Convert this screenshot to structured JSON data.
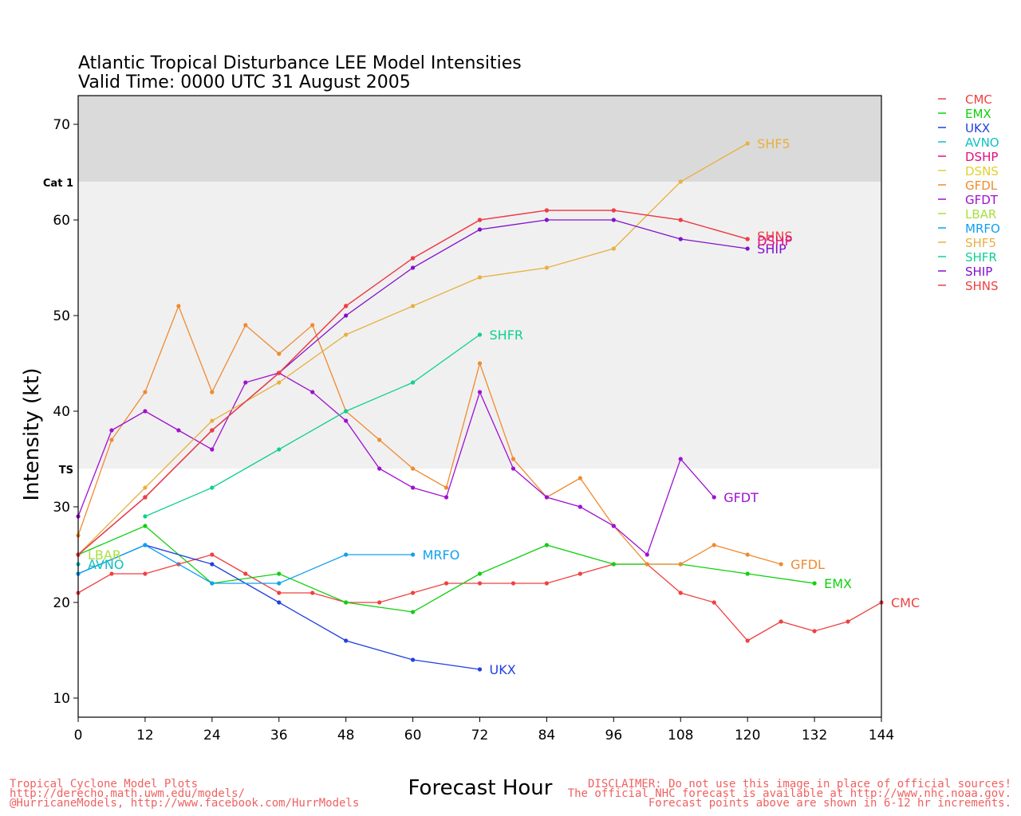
{
  "chart_data": {
    "type": "line",
    "title": "Atlantic Tropical Disturbance LEE Model Intensities",
    "subtitle": "Valid Time: 0000 UTC 31 August 2005",
    "xlabel": "Forecast Hour",
    "ylabel": "Intensity (kt)",
    "xlim": [
      0,
      144
    ],
    "ylim": [
      8,
      73
    ],
    "x_ticks": [
      0,
      12,
      24,
      36,
      48,
      60,
      72,
      84,
      96,
      108,
      120,
      132,
      144
    ],
    "y_ticks": [
      10,
      20,
      30,
      40,
      50,
      60,
      70
    ],
    "bands": [
      {
        "from": 34,
        "to": 64,
        "color": "#f0f0f0",
        "label": "TS",
        "label_at": 34
      },
      {
        "from": 64,
        "to": 73,
        "color": "#dadada",
        "label": "Cat 1",
        "label_at": 64
      }
    ],
    "grid": false,
    "legend_position": "right",
    "series": [
      {
        "name": "CMC",
        "color": "#f04040",
        "label_end": "CMC",
        "points": [
          [
            0,
            21
          ],
          [
            6,
            23
          ],
          [
            12,
            23
          ],
          [
            18,
            24
          ],
          [
            24,
            25
          ],
          [
            30,
            23
          ],
          [
            36,
            21
          ],
          [
            42,
            21
          ],
          [
            48,
            20
          ],
          [
            54,
            20
          ],
          [
            60,
            21
          ],
          [
            66,
            22
          ],
          [
            72,
            22
          ],
          [
            78,
            22
          ],
          [
            84,
            22
          ],
          [
            90,
            23
          ],
          [
            96,
            24
          ],
          [
            102,
            24
          ],
          [
            108,
            21
          ],
          [
            114,
            20
          ],
          [
            120,
            16
          ],
          [
            126,
            18
          ],
          [
            132,
            17
          ],
          [
            138,
            18
          ],
          [
            144,
            20
          ]
        ]
      },
      {
        "name": "EMX",
        "color": "#10d010",
        "label_end": "EMX",
        "points": [
          [
            0,
            25
          ],
          [
            12,
            28
          ],
          [
            24,
            22
          ],
          [
            36,
            23
          ],
          [
            48,
            20
          ],
          [
            60,
            19
          ],
          [
            72,
            23
          ],
          [
            84,
            26
          ],
          [
            96,
            24
          ],
          [
            108,
            24
          ],
          [
            120,
            23
          ],
          [
            132,
            22
          ]
        ]
      },
      {
        "name": "UKX",
        "color": "#2040e0",
        "label_end": "UKX",
        "points": [
          [
            0,
            23
          ],
          [
            12,
            26
          ],
          [
            24,
            24
          ],
          [
            36,
            20
          ],
          [
            48,
            16
          ],
          [
            60,
            14
          ],
          [
            72,
            13
          ]
        ]
      },
      {
        "name": "AVNO",
        "color": "#10c0c0",
        "label_end": "AVNO",
        "points": [
          [
            0,
            24
          ]
        ]
      },
      {
        "name": "DSHP",
        "color": "#e01080",
        "label_end": "",
        "points": [
          [
            0,
            25
          ],
          [
            12,
            31
          ],
          [
            24,
            38
          ],
          [
            36,
            44
          ],
          [
            48,
            51
          ],
          [
            60,
            56
          ],
          [
            72,
            60
          ],
          [
            84,
            61
          ],
          [
            96,
            61
          ],
          [
            108,
            60
          ],
          [
            120,
            58
          ]
        ]
      },
      {
        "name": "DSNS",
        "color": "#e0d030",
        "label_end": "",
        "points": []
      },
      {
        "name": "GFDL",
        "color": "#f08a30",
        "label_end": "GFDL",
        "points": [
          [
            0,
            27
          ],
          [
            6,
            37
          ],
          [
            12,
            42
          ],
          [
            18,
            51
          ],
          [
            24,
            42
          ],
          [
            30,
            49
          ],
          [
            36,
            46
          ],
          [
            42,
            49
          ],
          [
            48,
            40
          ],
          [
            54,
            37
          ],
          [
            60,
            34
          ],
          [
            66,
            32
          ],
          [
            72,
            45
          ],
          [
            78,
            35
          ],
          [
            84,
            31
          ],
          [
            90,
            33
          ],
          [
            96,
            28
          ],
          [
            102,
            24
          ],
          [
            108,
            24
          ],
          [
            114,
            26
          ],
          [
            120,
            25
          ],
          [
            126,
            24
          ]
        ]
      },
      {
        "name": "GFDT",
        "color": "#a010d0",
        "label_end": "GFDT",
        "points": [
          [
            0,
            29
          ],
          [
            6,
            38
          ],
          [
            12,
            40
          ],
          [
            18,
            38
          ],
          [
            24,
            36
          ],
          [
            30,
            43
          ],
          [
            36,
            44
          ],
          [
            42,
            42
          ],
          [
            48,
            39
          ],
          [
            54,
            34
          ],
          [
            60,
            32
          ],
          [
            66,
            31
          ],
          [
            72,
            42
          ],
          [
            78,
            34
          ],
          [
            84,
            31
          ],
          [
            90,
            30
          ],
          [
            96,
            28
          ],
          [
            102,
            25
          ],
          [
            108,
            35
          ],
          [
            114,
            31
          ]
        ]
      },
      {
        "name": "LBAR",
        "color": "#a8e040",
        "label_end": "LBAR",
        "points": [
          [
            0,
            25
          ]
        ]
      },
      {
        "name": "MRFO",
        "color": "#10a0f0",
        "label_end": "MRFO",
        "points": [
          [
            0,
            23
          ],
          [
            12,
            26
          ],
          [
            24,
            22
          ],
          [
            36,
            22
          ],
          [
            48,
            25
          ],
          [
            60,
            25
          ]
        ]
      },
      {
        "name": "SHF5",
        "color": "#e8b040",
        "label_end": "SHF5",
        "points": [
          [
            0,
            25
          ],
          [
            12,
            32
          ],
          [
            24,
            39
          ],
          [
            36,
            43
          ],
          [
            48,
            48
          ],
          [
            60,
            51
          ],
          [
            72,
            54
          ],
          [
            84,
            55
          ],
          [
            96,
            57
          ],
          [
            108,
            64
          ],
          [
            120,
            68
          ]
        ]
      },
      {
        "name": "SHFR",
        "color": "#10d090",
        "label_end": "SHFR",
        "points": [
          [
            12,
            29
          ],
          [
            24,
            32
          ],
          [
            36,
            36
          ],
          [
            48,
            40
          ],
          [
            60,
            43
          ],
          [
            72,
            48
          ]
        ]
      },
      {
        "name": "SHIP",
        "color": "#8010d0",
        "label_end": "",
        "points": [
          [
            0,
            25
          ],
          [
            12,
            31
          ],
          [
            24,
            38
          ],
          [
            36,
            44
          ],
          [
            48,
            50
          ],
          [
            60,
            55
          ],
          [
            72,
            59
          ],
          [
            84,
            60
          ],
          [
            96,
            60
          ],
          [
            108,
            58
          ],
          [
            120,
            57
          ]
        ]
      },
      {
        "name": "SHNS",
        "color": "#f04040",
        "label_end": "SHNS",
        "points": [
          [
            0,
            25
          ],
          [
            12,
            31
          ],
          [
            24,
            38
          ],
          [
            36,
            44
          ],
          [
            48,
            51
          ],
          [
            60,
            56
          ],
          [
            72,
            60
          ],
          [
            84,
            61
          ],
          [
            96,
            61
          ],
          [
            108,
            60
          ],
          [
            120,
            58
          ]
        ]
      }
    ],
    "stacked_end_labels": [
      "SHNS",
      "SHIP",
      "DSHP"
    ]
  },
  "footer": {
    "left": [
      "Tropical Cyclone Model Plots",
      "http://derecho.math.uwm.edu/models/",
      "@HurricaneModels, http://www.facebook.com/HurrModels"
    ],
    "right": [
      "DISCLAIMER: Do not use this image in place of official sources!",
      "The official NHC forecast is available at http://www.nhc.noaa.gov.",
      "Forecast points above are shown in 6-12 hr increments."
    ],
    "color": "#f06060"
  }
}
